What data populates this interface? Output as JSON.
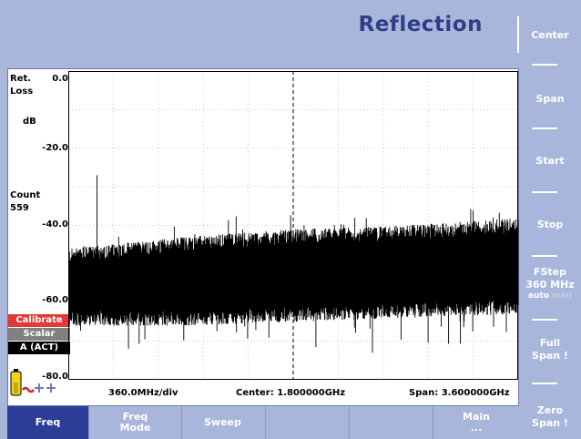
{
  "header": {
    "title": "Reflection"
  },
  "softkeys": [
    {
      "label": "Center"
    },
    {
      "label": "Span"
    },
    {
      "label": "Start"
    },
    {
      "label": "Stop"
    },
    {
      "label": "FStep",
      "value": "360 MHz",
      "auto": "auto",
      "man": "man"
    },
    {
      "label": "Full",
      "label2": "Span !"
    },
    {
      "label": "Zero",
      "label2": "Span !"
    }
  ],
  "plot": {
    "ylabel_line1": "Ret.",
    "ylabel_line2": "Loss",
    "ylabel_unit": "dB",
    "ticks": [
      "0.0",
      "-20.0",
      "-40.0",
      "-60.0",
      "-80.0"
    ],
    "count_label": "Count",
    "count_value": "559",
    "badges": {
      "calibrate": "Calibrate",
      "scalar": "Scalar",
      "act": "A (ACT)"
    },
    "footer": {
      "div": "360.0MHz/div",
      "center": "Center: 1.800000GHz",
      "span": "Span: 3.600000GHz"
    }
  },
  "tabs": [
    {
      "label": "Freq",
      "active": true
    },
    {
      "label": "Freq",
      "label2": "Mode"
    },
    {
      "label": "Sweep"
    },
    {
      "label": ""
    },
    {
      "label": ""
    },
    {
      "label": "Main",
      "label2": "..."
    }
  ],
  "colors": {
    "background": "#a9b6dc",
    "title": "#2f3f86",
    "active_tab": "#2d3c97",
    "calibrate": "#e0393a"
  },
  "chart_data": {
    "type": "line",
    "ylabel": "Ret. Loss dB",
    "ylim": [
      -80,
      0
    ],
    "xlim": [
      0,
      3.6
    ],
    "x_unit": "GHz",
    "grid": true,
    "center_marker_x": 1.8,
    "series": [
      {
        "envelope_upper": [
          -48,
          -45,
          -43,
          -42,
          -40
        ],
        "envelope_lower": [
          -64,
          -64,
          -63,
          -62,
          -61
        ],
        "x": [
          0,
          0.9,
          1.8,
          2.7,
          3.6
        ]
      }
    ]
  }
}
